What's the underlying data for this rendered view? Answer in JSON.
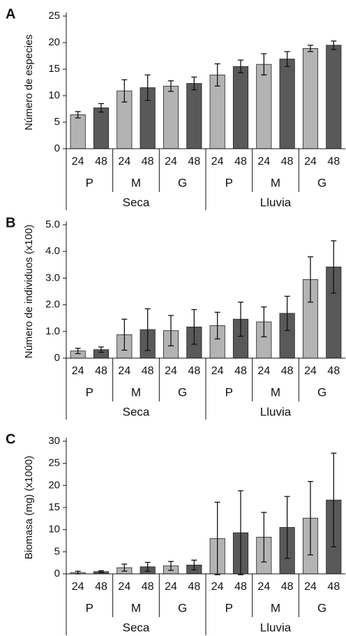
{
  "chart_data": [
    {
      "type": "bar",
      "panel": "A",
      "ylabel": "Número de especies",
      "categories": [
        "24",
        "48",
        "24",
        "48",
        "24",
        "48",
        "24",
        "48",
        "24",
        "48",
        "24",
        "48"
      ],
      "groups": [
        "P",
        "M",
        "G",
        "P",
        "M",
        "G"
      ],
      "seasons": [
        "Seca",
        "Lluvia"
      ],
      "values": [
        6.4,
        7.7,
        10.9,
        11.5,
        11.8,
        12.3,
        13.9,
        15.5,
        15.9,
        16.9,
        18.9,
        19.5
      ],
      "errors": [
        0.6,
        0.8,
        2.1,
        2.4,
        1.0,
        1.2,
        2.1,
        1.2,
        2.0,
        1.4,
        0.6,
        0.8
      ],
      "colors": [
        "#b3b3b3",
        "#595959"
      ],
      "ylim": [
        0,
        25
      ],
      "yticks": [
        0,
        5,
        10,
        15,
        20,
        25
      ]
    },
    {
      "type": "bar",
      "panel": "B",
      "ylabel": "Número de individuos (x100)",
      "categories": [
        "24",
        "48",
        "24",
        "48",
        "24",
        "48",
        "24",
        "48",
        "24",
        "48",
        "24",
        "48"
      ],
      "groups": [
        "P",
        "M",
        "G",
        "P",
        "M",
        "G"
      ],
      "seasons": [
        "Seca",
        "Lluvia"
      ],
      "values": [
        0.27,
        0.32,
        0.88,
        1.07,
        1.03,
        1.17,
        1.22,
        1.46,
        1.36,
        1.68,
        2.95,
        3.42
      ],
      "errors": [
        0.1,
        0.1,
        0.58,
        0.78,
        0.57,
        0.65,
        0.5,
        0.64,
        0.56,
        0.64,
        0.85,
        0.98
      ],
      "colors": [
        "#b3b3b3",
        "#595959"
      ],
      "ylim": [
        0,
        5
      ],
      "yticks": [
        0,
        {
          "value": 1,
          "label": "1.0"
        },
        {
          "value": 2,
          "label": "2.0"
        },
        {
          "value": 3,
          "label": "3.0"
        },
        {
          "value": 4,
          "label": "4.0"
        },
        {
          "value": 5,
          "label": "5.0"
        }
      ]
    },
    {
      "type": "bar",
      "panel": "C",
      "ylabel": "Biomasa (mg) (x1000)",
      "categories": [
        "24",
        "48",
        "24",
        "48",
        "24",
        "48",
        "24",
        "48",
        "24",
        "48",
        "24",
        "48"
      ],
      "groups": [
        "P",
        "M",
        "G",
        "P",
        "M",
        "G"
      ],
      "seasons": [
        "Seca",
        "Lluvia"
      ],
      "values": [
        0.3,
        0.5,
        1.4,
        1.6,
        1.8,
        2.0,
        8.0,
        9.3,
        8.3,
        10.5,
        12.6,
        16.7
      ],
      "errors": [
        0.3,
        0.2,
        0.8,
        1.0,
        1.0,
        1.1,
        8.2,
        9.5,
        5.6,
        7.0,
        8.3,
        10.6
      ],
      "colors": [
        "#b3b3b3",
        "#595959"
      ],
      "ylim": [
        0,
        30
      ],
      "yticks": [
        0,
        5,
        10,
        15,
        20,
        25,
        30
      ]
    }
  ]
}
